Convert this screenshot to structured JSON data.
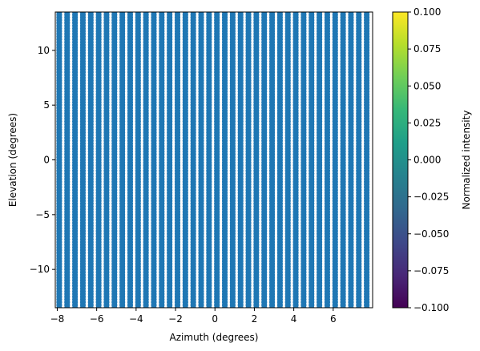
{
  "chart_data": {
    "type": "scatter",
    "title": "",
    "xlabel": "Azimuth (degrees)",
    "ylabel": "Elevation (degrees)",
    "xlim": [
      -8.1,
      8.0
    ],
    "ylim": [
      -13.5,
      13.5
    ],
    "xticks": [
      -8,
      -6,
      -4,
      -2,
      0,
      2,
      4,
      6
    ],
    "xtick_labels": [
      "−8",
      "−6",
      "−4",
      "−2",
      "0",
      "2",
      "4",
      "6"
    ],
    "yticks": [
      -10,
      -5,
      0,
      5,
      10
    ],
    "ytick_labels": [
      "−10",
      "−5",
      "0",
      "5",
      "10"
    ],
    "grid": false,
    "point_color": "#1f77b4",
    "grid_points": {
      "x_start": -7.9,
      "x_step": 0.4,
      "x_count": 40,
      "y_start": -13.5,
      "y_step": 0.25,
      "y_count": 109
    },
    "colorbar": {
      "label": "Normalized intensity",
      "colormap": "viridis",
      "min": -0.1,
      "max": 0.1,
      "ticks": [
        0.1,
        0.075,
        0.05,
        0.025,
        0.0,
        -0.025,
        -0.05,
        -0.075,
        -0.1
      ],
      "tick_labels": [
        "0.100",
        "0.075",
        "0.050",
        "0.025",
        "0.000",
        "−0.025",
        "−0.050",
        "−0.075",
        "−0.100"
      ],
      "stops": [
        "#440154",
        "#482878",
        "#3e4989",
        "#31688e",
        "#26828e",
        "#1f9e89",
        "#35b779",
        "#6ece58",
        "#b5de2b",
        "#fde725"
      ]
    }
  }
}
